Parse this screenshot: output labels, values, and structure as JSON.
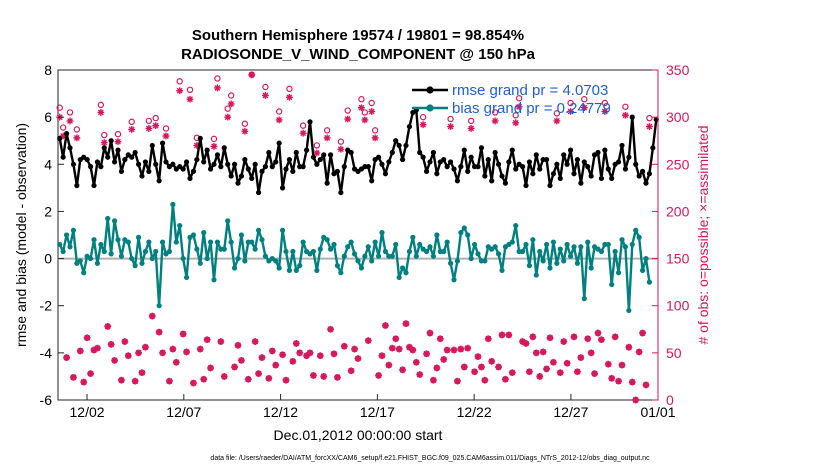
{
  "chart_data": {
    "type": "line",
    "title": "Southern Hemisphere 19574 / 19801 = 98.854%",
    "subtitle": "RADIOSONDE_V_WIND_COMPONENT @ 150 hPa",
    "xlabel": "Dec.01,2012 00:00:00 start",
    "ylabel": "rmse and bias (model - observation)",
    "y2label": "# of obs: o=possible; ×=assimilated",
    "footnote": "data file: /Users/raeder/DAI/ATM_forcXX/CAM6_setup/f.e21.FHIST_BGC.f09_025.CAM6assim.011/Diags_NTrS_2012-12/obs_diag_output.nc",
    "xlim": [
      0,
      31
    ],
    "ylim": [
      -6,
      8
    ],
    "y2lim": [
      0,
      350
    ],
    "x_ticks": [
      {
        "v": 1.5,
        "label": "12/02"
      },
      {
        "v": 6.5,
        "label": "12/07"
      },
      {
        "v": 11.5,
        "label": "12/12"
      },
      {
        "v": 16.5,
        "label": "12/17"
      },
      {
        "v": 21.5,
        "label": "12/22"
      },
      {
        "v": 26.5,
        "label": "12/27"
      },
      {
        "v": 31,
        "label": "01/01"
      }
    ],
    "y_ticks": [
      -6,
      -4,
      -2,
      0,
      2,
      4,
      6,
      8
    ],
    "y2_ticks": [
      0,
      50,
      100,
      150,
      200,
      250,
      300,
      350
    ],
    "colors": {
      "rmse": "#000000",
      "bias": "#00807f",
      "obs": "#d6175e",
      "zero": "#b0b0b0",
      "legend_text": "#1f5fd6"
    },
    "legend": [
      {
        "label": "rmse grand pr = 4.0703",
        "series": "rmse"
      },
      {
        "label": "bias grand pr = 0.24779",
        "series": "bias"
      }
    ],
    "rmse": [
      5.1,
      4.3,
      5.3,
      4.7,
      4.0,
      3.1,
      4.2,
      4.3,
      4.2,
      3.9,
      3.1,
      4.1,
      3.9,
      4.7,
      4.3,
      5.0,
      4.1,
      4.6,
      3.7,
      4.2,
      4.4,
      4.3,
      4.5,
      4.0,
      3.5,
      4.1,
      3.7,
      4.8,
      4.0,
      3.3,
      4.9,
      4.1,
      3.9,
      4.0,
      3.8,
      3.9,
      3.8,
      4.1,
      3.4,
      3.7,
      4.2,
      5.1,
      4.1,
      4.6,
      3.8,
      4.0,
      4.4,
      3.9,
      4.7,
      4.0,
      3.5,
      4.0,
      3.2,
      3.5,
      4.2,
      3.8,
      3.4,
      4.0,
      2.8,
      3.7,
      3.9,
      4.5,
      3.9,
      4.1,
      4.9,
      3.0,
      3.8,
      4.2,
      3.7,
      4.5,
      3.9,
      3.9,
      4.6,
      5.8,
      4.3,
      4.0,
      4.2,
      4.4,
      3.2,
      4.4,
      3.6,
      3.7,
      2.8,
      3.9,
      4.6,
      4.5,
      3.8,
      3.7,
      3.8,
      3.9,
      3.9,
      3.3,
      4.2,
      4.3,
      4.0,
      3.6,
      4.1,
      4.5,
      5.0,
      4.8,
      4.2,
      4.8,
      5.6,
      6.2,
      6.3,
      4.5,
      4.3,
      3.7,
      4.1,
      4.5,
      3.6,
      4.1,
      4.2,
      3.9,
      4.1,
      3.8,
      3.3,
      3.9,
      4.6,
      3.7,
      4.3,
      3.9,
      3.9,
      4.7,
      3.5,
      4.2,
      3.3,
      4.5,
      4.0,
      3.5,
      3.2,
      4.1,
      4.6,
      3.8,
      4.0,
      3.9,
      3.1,
      4.1,
      3.6,
      4.4,
      3.8,
      4.2,
      4.2,
      3.1,
      3.6,
      4.0,
      3.4,
      4.4,
      4.0,
      4.6,
      3.6,
      4.2,
      3.2,
      4.1,
      3.9,
      3.5,
      4.4,
      4.5,
      3.4,
      4.6,
      3.8,
      3.4,
      4.0,
      4.1,
      4.8,
      3.8,
      4.3,
      6.0,
      4.0,
      3.5,
      3.7,
      3.2,
      3.6,
      4.7,
      5.9
    ],
    "bias": [
      0.6,
      0.3,
      1.0,
      0.5,
      1.2,
      -0.2,
      -0.1,
      -0.6,
      0.1,
      0.0,
      0.8,
      -0.2,
      0.6,
      0.3,
      1.7,
      0.2,
      1.6,
      0.8,
      0.1,
      0.8,
      0.7,
      0.0,
      -0.3,
      0.9,
      -0.2,
      0.3,
      0.7,
      0.0,
      0.3,
      -2.0,
      0.7,
      0.2,
      0.3,
      2.3,
      0.7,
      1.4,
      0.0,
      -0.8,
      0.9,
      1.0,
      0.4,
      -0.2,
      1.1,
      0.0,
      0.7,
      -0.9,
      0.7,
      0.4,
      0.4,
      1.6,
      0.7,
      -0.4,
      0.0,
      1.0,
      -0.1,
      0.7,
      0.7,
      0.4,
      1.2,
      0.8,
      0.1,
      -0.1,
      0.0,
      -0.1,
      -0.4,
      1.2,
      0.3,
      -0.5,
      0.3,
      -0.5,
      -0.3,
      0.7,
      0.3,
      0.2,
      0.3,
      -0.5,
      0.4,
      0.9,
      0.8,
      0.4,
      0.6,
      -0.3,
      -0.6,
      0.1,
      0.5,
      0.7,
      0.2,
      -0.1,
      -0.4,
      0.1,
      0.5,
      -0.1,
      0.7,
      0.1,
      1.1,
      0.3,
      0.1,
      0.1,
      0.6,
      -0.8,
      -0.4,
      -0.6,
      0.3,
      0.9,
      0.1,
      0.6,
      0.4,
      0.3,
      0.5,
      0.1,
      1.0,
      0.3,
      0.3,
      0.7,
      -0.2,
      -0.9,
      -0.1,
      1.1,
      1.3,
      1.0,
      0.0,
      0.6,
      0.2,
      -0.1,
      -0.1,
      0.5,
      0.4,
      0.5,
      0.2,
      -0.5,
      0.5,
      0.6,
      0.7,
      1.4,
      0.3,
      0.3,
      0.6,
      -0.3,
      0.8,
      -0.7,
      0.3,
      -0.1,
      0.6,
      -0.4,
      0.7,
      -0.2,
      0.4,
      -0.1,
      0.6,
      0.1,
      0.5,
      -0.2,
      0.5,
      -1.7,
      0.7,
      -0.4,
      0.5,
      0.4,
      0.3,
      0.6,
      0.6,
      -1.1,
      0.3,
      -0.6,
      0.8,
      0.5,
      -2.2,
      0.6,
      1.2,
      0.9,
      -0.5,
      0.0,
      -1.0
    ],
    "obs_possible": [
      310,
      289,
      45,
      305,
      24,
      287,
      52,
      19,
      66,
      28,
      53,
      55,
      313,
      281,
      78,
      59,
      42,
      282,
      21,
      62,
      47,
      295,
      20,
      50,
      29,
      56,
      296,
      89,
      299,
      72,
      50,
      288,
      20,
      54,
      40,
      338,
      70,
      51,
      329,
      18,
      278,
      54,
      22,
      64,
      34,
      277,
      341,
      62,
      25,
      309,
      323,
      35,
      58,
      42,
      293,
      22,
      345,
      62,
      28,
      45,
      332,
      23,
      52,
      37,
      306,
      48,
      21,
      330,
      41,
      60,
      50,
      291,
      47,
      50,
      26,
      270,
      47,
      25,
      286,
      75,
      49,
      24,
      274,
      57,
      307,
      31,
      54,
      44,
      319,
      305,
      63,
      315,
      286,
      26,
      47,
      79,
      37,
      55,
      65,
      54,
      32,
      81,
      56,
      53,
      40,
      27,
      300,
      49,
      71,
      21,
      34,
      65,
      43,
      53,
      298,
      53,
      20,
      54,
      35,
      55,
      296,
      30,
      46,
      35,
      21,
      65,
      41,
      305,
      35,
      69,
      22,
      69,
      29,
      302,
      320,
      62,
      60,
      30,
      67,
      50,
      25,
      51,
      33,
      66,
      40,
      304,
      29,
      62,
      39,
      315,
      67,
      30,
      45,
      319,
      65,
      50,
      28,
      71,
      64,
      315,
      38,
      23,
      67,
      20,
      37,
      311,
      56,
      19,
      0,
      51,
      71,
      16,
      299
    ],
    "obs_assimilated": [
      300,
      280,
      45,
      296,
      24,
      278,
      52,
      19,
      66,
      28,
      53,
      55,
      305,
      273,
      78,
      59,
      42,
      274,
      21,
      62,
      47,
      287,
      20,
      50,
      29,
      56,
      288,
      89,
      291,
      72,
      50,
      280,
      20,
      54,
      40,
      328,
      70,
      51,
      319,
      18,
      270,
      54,
      22,
      64,
      34,
      269,
      331,
      62,
      25,
      300,
      314,
      35,
      58,
      42,
      285,
      22,
      345,
      62,
      28,
      45,
      323,
      23,
      52,
      37,
      297,
      48,
      21,
      321,
      41,
      60,
      50,
      283,
      47,
      50,
      26,
      262,
      47,
      25,
      278,
      75,
      49,
      24,
      266,
      57,
      298,
      31,
      54,
      44,
      310,
      297,
      63,
      306,
      278,
      26,
      47,
      79,
      37,
      55,
      65,
      54,
      32,
      81,
      56,
      53,
      40,
      27,
      292,
      49,
      71,
      21,
      34,
      65,
      43,
      53,
      290,
      53,
      20,
      54,
      35,
      55,
      288,
      30,
      46,
      35,
      21,
      65,
      41,
      296,
      35,
      69,
      22,
      69,
      29,
      294,
      311,
      62,
      60,
      30,
      67,
      50,
      25,
      51,
      33,
      66,
      40,
      296,
      29,
      62,
      39,
      306,
      67,
      30,
      45,
      310,
      65,
      50,
      28,
      71,
      64,
      306,
      38,
      23,
      67,
      20,
      37,
      302,
      56,
      19,
      0,
      51,
      71,
      16,
      290
    ]
  }
}
